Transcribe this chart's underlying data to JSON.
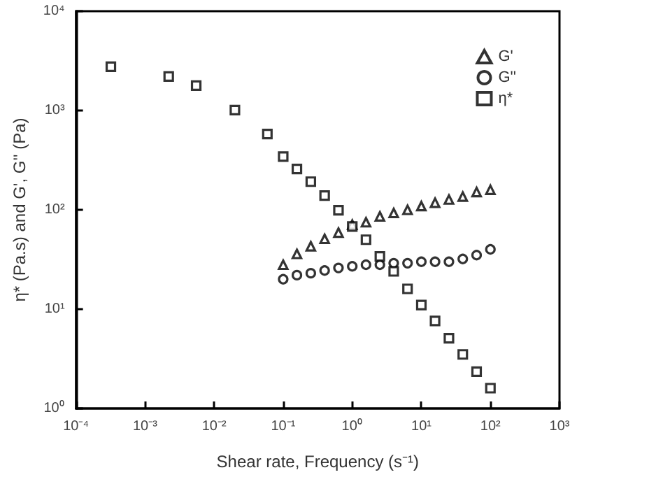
{
  "chart_data": {
    "type": "scatter",
    "xlabel": "Shear rate, Frequency (s⁻¹)",
    "ylabel": "η* (Pa.s) and G', G'' (Pa)",
    "log": "xy",
    "grid": false,
    "legend": "top right",
    "xlim": [
      0.0001,
      1000
    ],
    "ylim": [
      1,
      10000
    ],
    "xticks": [
      {
        "value": 0.0001,
        "label": "10⁻⁴"
      },
      {
        "value": 0.001,
        "label": "10⁻³"
      },
      {
        "value": 0.01,
        "label": "10⁻²"
      },
      {
        "value": 0.1,
        "label": "10⁻¹"
      },
      {
        "value": 1,
        "label": "10⁰"
      },
      {
        "value": 10,
        "label": "10¹"
      },
      {
        "value": 100,
        "label": "10²"
      },
      {
        "value": 1000,
        "label": "10³"
      }
    ],
    "yticks": [
      {
        "value": 1,
        "label": "10⁰"
      },
      {
        "value": 10,
        "label": "10¹"
      },
      {
        "value": 100,
        "label": "10²"
      },
      {
        "value": 1000,
        "label": "10³"
      },
      {
        "value": 10000,
        "label": "10⁴"
      }
    ],
    "series": [
      {
        "name": "G'",
        "color": "#000000",
        "marker": "triangle",
        "x": [
          0.1,
          0.158,
          0.251,
          0.398,
          0.631,
          1,
          1.58,
          2.51,
          3.98,
          6.31,
          10,
          15.8,
          25.1,
          39.8,
          63.1,
          100
        ],
        "values": [
          28,
          36,
          43,
          51,
          59,
          71,
          75,
          86,
          93,
          100,
          109,
          118,
          127,
          136,
          151,
          159
        ]
      },
      {
        "name": "G''",
        "color": "#000000",
        "marker": "circle",
        "x": [
          0.1,
          0.158,
          0.251,
          0.398,
          0.631,
          1,
          1.58,
          2.51,
          3.98,
          6.31,
          10,
          15.8,
          25.1,
          39.8,
          63.1,
          100
        ],
        "values": [
          20,
          22,
          23,
          24.5,
          26,
          27,
          28,
          28,
          29,
          29,
          30,
          30,
          30,
          32,
          35,
          40
        ]
      },
      {
        "name": "η*",
        "color": "#000000",
        "marker": "square",
        "x": [
          0.00032,
          0.0022,
          0.0055,
          0.02,
          0.059,
          0.1,
          0.158,
          0.251,
          0.398,
          0.631,
          1,
          1.58,
          2.51,
          3.98,
          6.31,
          10,
          15.8,
          25.1,
          39.8,
          63.1,
          100
        ],
        "values": [
          2760,
          2200,
          1780,
          1010,
          580,
          344,
          258,
          192,
          139,
          99,
          68,
          50,
          34,
          24,
          16,
          11,
          7.6,
          5.1,
          3.5,
          2.35,
          1.6
        ]
      }
    ]
  }
}
